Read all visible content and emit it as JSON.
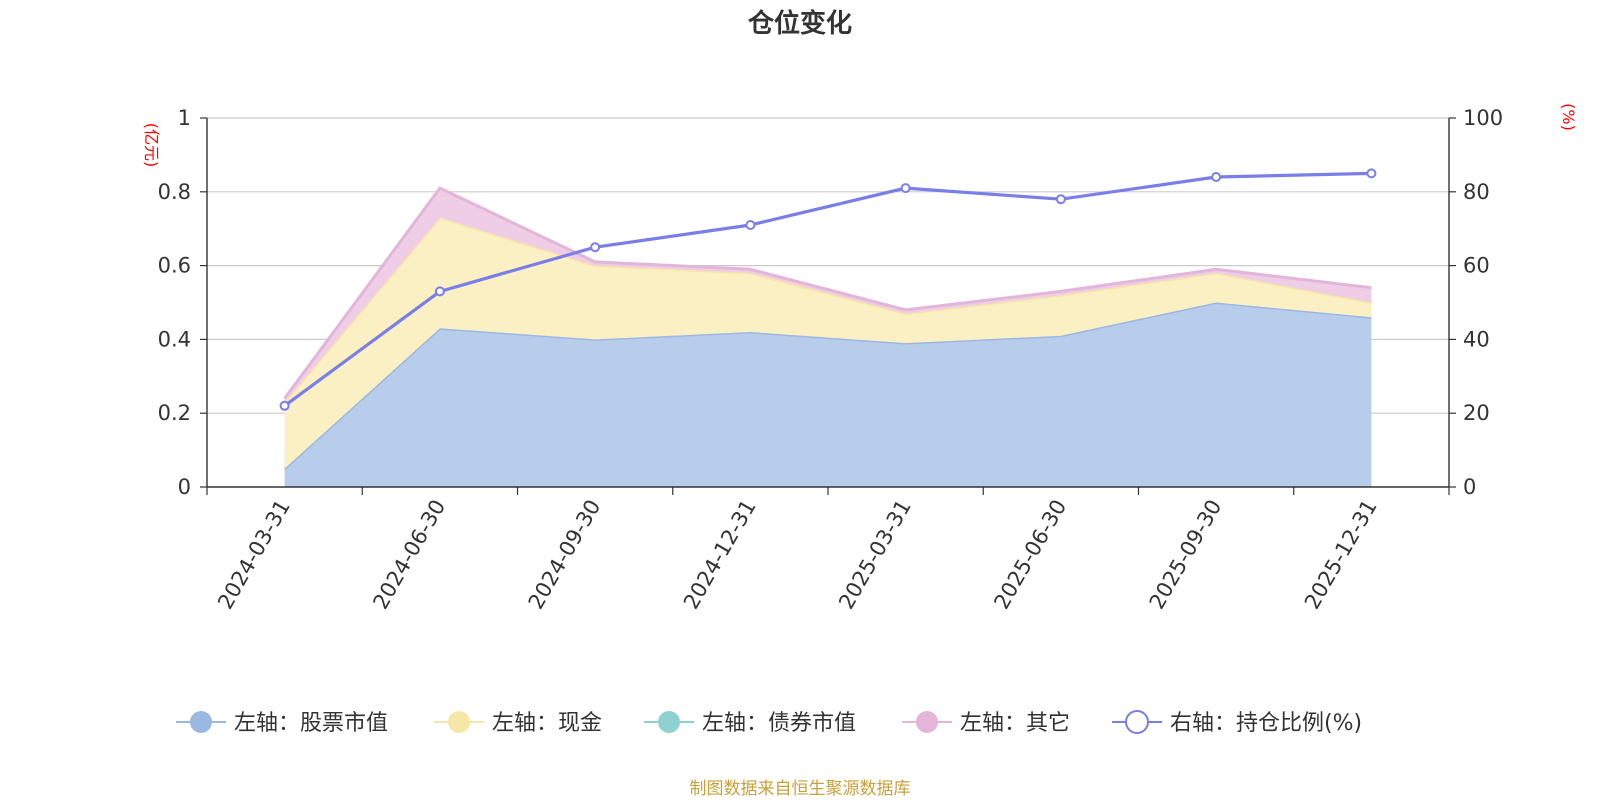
{
  "chart_data": {
    "type": "area",
    "title": "仓位变化",
    "left_unit": "(亿元)",
    "right_unit": "(%)",
    "categories": [
      "2024-03-31",
      "2024-06-30",
      "2024-09-30",
      "2024-12-31",
      "2025-03-31",
      "2025-06-30",
      "2025-09-30",
      "2025-12-31"
    ],
    "left_ylim": [
      0,
      1
    ],
    "left_ticks": [
      "0",
      "0.2",
      "0.4",
      "0.6",
      "0.8",
      "1"
    ],
    "right_ylim": [
      0,
      100
    ],
    "right_ticks": [
      "0",
      "20",
      "40",
      "60",
      "80",
      "100"
    ],
    "grid": true,
    "legend_position": "bottom",
    "series": [
      {
        "name": "左轴：股票市值",
        "axis": "left",
        "stack": true,
        "color": "#9bb8e3",
        "fill": "#b8cdeb",
        "values": [
          0.05,
          0.43,
          0.4,
          0.42,
          0.39,
          0.41,
          0.5,
          0.46
        ]
      },
      {
        "name": "左轴：现金",
        "axis": "left",
        "stack": true,
        "color": "#f7e7a6",
        "fill": "#fbefc4",
        "values": [
          0.18,
          0.3,
          0.2,
          0.16,
          0.08,
          0.11,
          0.08,
          0.04
        ]
      },
      {
        "name": "左轴：债券市值",
        "axis": "left",
        "stack": true,
        "color": "#8fd1d1",
        "fill": "#b5e3e3",
        "values": [
          0,
          0,
          0,
          0,
          0,
          0,
          0,
          0
        ]
      },
      {
        "name": "左轴：其它",
        "axis": "left",
        "stack": true,
        "color": "#e3b5d9",
        "fill": "#efcde6",
        "values": [
          0.01,
          0.08,
          0.01,
          0.01,
          0.01,
          0.01,
          0.01,
          0.04
        ]
      },
      {
        "name": "右轴：持仓比例(%)",
        "axis": "right",
        "stack": false,
        "color": "#7a7ee8",
        "values": [
          22,
          53,
          65,
          71,
          81,
          78,
          84,
          85
        ]
      }
    ]
  },
  "footer": {
    "source": "制图数据来自恒生聚源数据库"
  }
}
